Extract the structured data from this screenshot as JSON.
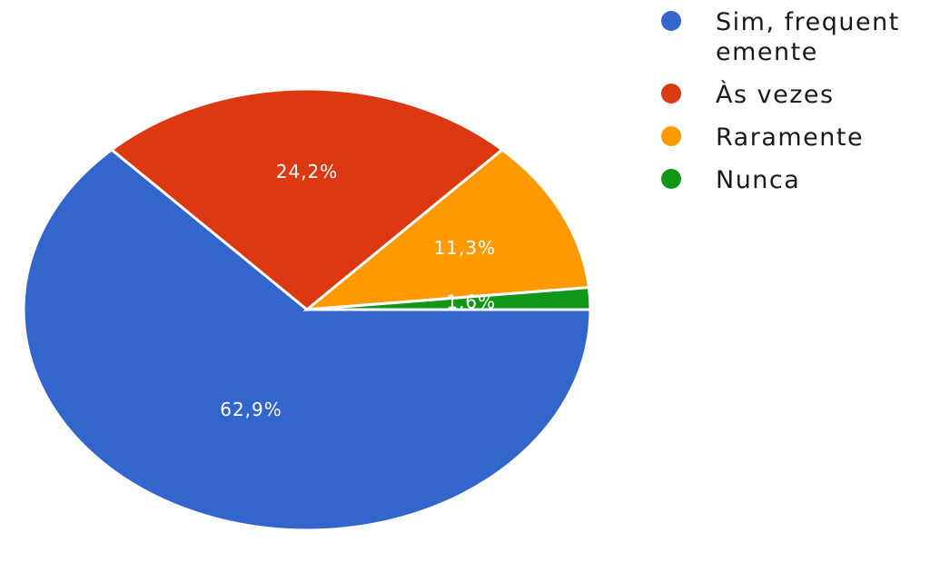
{
  "chart_data": {
    "type": "pie",
    "categories": [
      "Sim, frequentemente",
      "Às vezes",
      "Raramente",
      "Nunca"
    ],
    "values": [
      62.9,
      24.2,
      11.3,
      1.6
    ],
    "value_labels": [
      "62,9%",
      "24,2%",
      "11,3%",
      "1,6%"
    ],
    "colors": [
      "#3366cc",
      "#dc3912",
      "#ff9900",
      "#109618"
    ],
    "legend_position": "right"
  }
}
